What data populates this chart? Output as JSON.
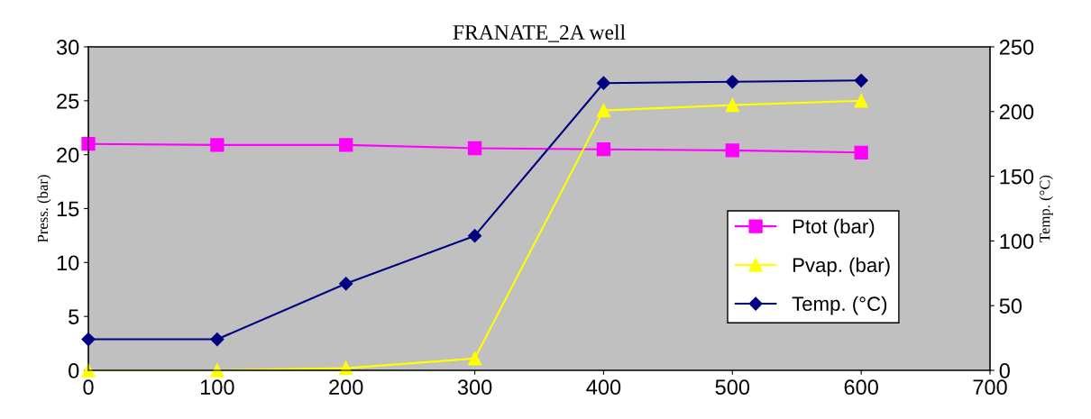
{
  "chart_data": {
    "type": "line",
    "title": "FRANATE_2A well",
    "ylabel": "Press. (bar)",
    "y2label": "Temp. (°C)",
    "x": [
      0,
      100,
      200,
      300,
      400,
      500,
      600
    ],
    "xlim": [
      0,
      700
    ],
    "xticks": [
      0,
      100,
      200,
      300,
      400,
      500,
      600,
      700
    ],
    "ylim": [
      0,
      30
    ],
    "yticks": [
      0,
      5,
      10,
      15,
      20,
      25,
      30
    ],
    "y2lim": [
      0,
      250
    ],
    "y2ticks": [
      0,
      50,
      100,
      150,
      200,
      250
    ],
    "grid": false,
    "legend": "right",
    "series": [
      {
        "name": "Ptot (bar)",
        "color": "#ff00ff",
        "marker": "square",
        "values": [
          21.0,
          20.9,
          20.9,
          20.6,
          20.5,
          20.4,
          20.2
        ]
      },
      {
        "name": "Pvap. (bar)",
        "color": "#ffff00",
        "marker": "triangle",
        "values": [
          0,
          0,
          0.2,
          1.1,
          24.1,
          24.6,
          25.0
        ]
      },
      {
        "name": "Temp. (°C)",
        "color": "#000080",
        "marker": "diamond",
        "axis": "y2",
        "values": [
          24,
          24,
          67,
          104,
          222,
          223,
          224
        ]
      }
    ]
  }
}
